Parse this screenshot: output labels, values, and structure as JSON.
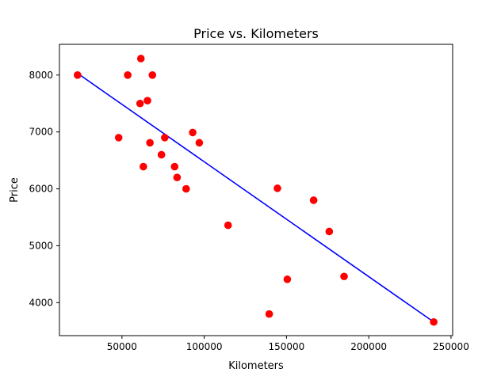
{
  "chart_data": {
    "type": "scatter",
    "title": "Price vs. Kilometers",
    "xlabel": "Kilometers",
    "ylabel": "Price",
    "xlim": [
      12000,
      251000
    ],
    "ylim": [
      3420,
      8540
    ],
    "xticks": [
      50000,
      100000,
      150000,
      200000,
      250000
    ],
    "xtick_labels": [
      "50000",
      "100000",
      "150000",
      "200000",
      "250000"
    ],
    "yticks": [
      4000,
      5000,
      6000,
      7000,
      8000
    ],
    "ytick_labels": [
      "4000",
      "5000",
      "6000",
      "7000",
      "8000"
    ],
    "grid": false,
    "marker_color": "#ff0000",
    "line_color": "#0000ff",
    "points": [
      {
        "x": 23000,
        "y": 8000
      },
      {
        "x": 48000,
        "y": 6900
      },
      {
        "x": 53500,
        "y": 8000
      },
      {
        "x": 61000,
        "y": 7500
      },
      {
        "x": 61500,
        "y": 8290
      },
      {
        "x": 63000,
        "y": 6390
      },
      {
        "x": 65500,
        "y": 7550
      },
      {
        "x": 67000,
        "y": 6810
      },
      {
        "x": 68500,
        "y": 8000
      },
      {
        "x": 74000,
        "y": 6600
      },
      {
        "x": 76000,
        "y": 6900
      },
      {
        "x": 82000,
        "y": 6390
      },
      {
        "x": 83500,
        "y": 6200
      },
      {
        "x": 89000,
        "y": 6000
      },
      {
        "x": 93000,
        "y": 6990
      },
      {
        "x": 97000,
        "y": 6810
      },
      {
        "x": 114500,
        "y": 5360
      },
      {
        "x": 139500,
        "y": 3800
      },
      {
        "x": 144500,
        "y": 6010
      },
      {
        "x": 150500,
        "y": 4410
      },
      {
        "x": 166500,
        "y": 5800
      },
      {
        "x": 176000,
        "y": 5250
      },
      {
        "x": 185000,
        "y": 4460
      },
      {
        "x": 239500,
        "y": 3660
      }
    ],
    "regression_line": {
      "x": [
        23000,
        239500
      ],
      "y": [
        8030,
        3660
      ]
    }
  }
}
